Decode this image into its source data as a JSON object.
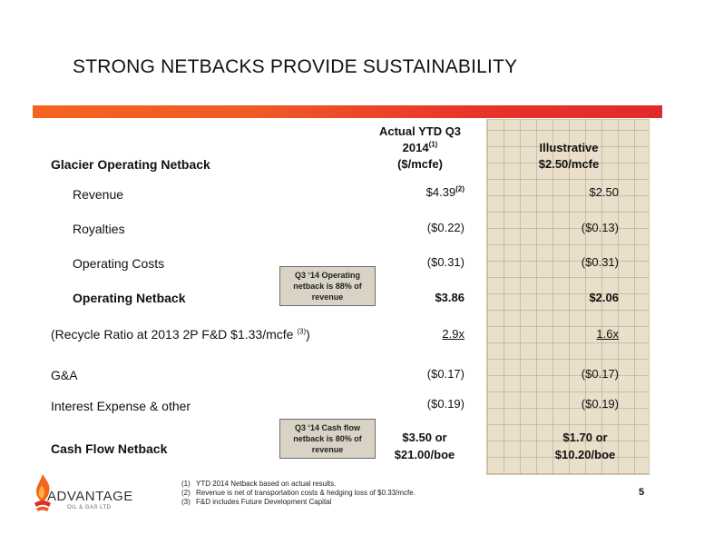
{
  "slide": {
    "title": "STRONG NETBACKS PROVIDE SUSTAINABILITY",
    "page_number": "5"
  },
  "columns": {
    "col1": {
      "line1": "Actual YTD Q3",
      "line2": "2014",
      "line2_sup": "(1)",
      "line3": "($/mcfe)"
    },
    "col2": {
      "line1": "Illustrative",
      "line2": "$2.50/mcfe"
    }
  },
  "rows": {
    "header": {
      "label": "Glacier Operating Netback"
    },
    "revenue": {
      "label": "Revenue",
      "v1": "$4.39",
      "v1_sup": "(2)",
      "v2": "$2.50"
    },
    "royalties": {
      "label": "Royalties",
      "v1": "($0.22)",
      "v2": "($0.13)"
    },
    "opcosts": {
      "label": "Operating Costs",
      "v1": "($0.31)",
      "v2": "($0.31)"
    },
    "opnetback": {
      "label": "Operating Netback",
      "v1": "$3.86",
      "v2": "$2.06"
    },
    "recycle": {
      "label": "(Recycle Ratio at 2013 2P F&D $1.33/mcfe ",
      "label_sup": "(3)",
      "label_end": ")",
      "v1": "2.9x",
      "v2": "1.6x"
    },
    "ga": {
      "label": "G&A",
      "v1": "($0.17)",
      "v2": "($0.17)"
    },
    "interest": {
      "label": "Interest Expense & other",
      "v1": "($0.19)",
      "v2": "($0.19)"
    },
    "cashflow": {
      "label": "Cash Flow Netback",
      "v1_l1": "$3.50 or",
      "v1_l2": "$21.00/boe",
      "v2_l1": "$1.70 or",
      "v2_l2": "$10.20/boe"
    }
  },
  "callouts": {
    "operating": {
      "l1": "Q3 ‘14 Operating",
      "l2": "netback is 88% of",
      "l3": "revenue"
    },
    "cashflow": {
      "l1": "Q3 ‘14 Cash flow",
      "l2": "netback is 80% of",
      "l3": "revenue"
    }
  },
  "footnotes": [
    {
      "num": "(1)",
      "text": "YTD 2014 Netback based on actual results."
    },
    {
      "num": "(2)",
      "text": "Revenue is net of transportation costs & hedging loss  of $0.33/mcfe."
    },
    {
      "num": "(3)",
      "text": "F&D includes Future Development Capital"
    }
  ],
  "logo": {
    "word": "ADVANTAGE",
    "sub": "OIL & GAS LTD"
  },
  "colors": {
    "accent_orange": "#f4651f",
    "accent_red": "#e12a2a",
    "panel": "#e9dfca"
  }
}
